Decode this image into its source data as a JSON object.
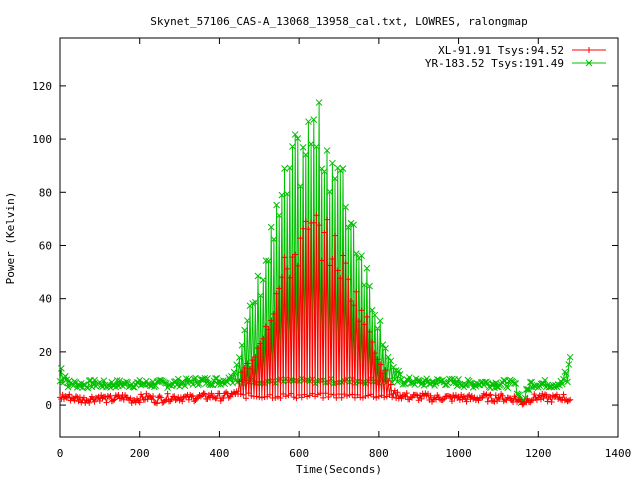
{
  "chart_data": {
    "type": "line",
    "title": "Skynet_57106_CAS-A_13068_13958_cal.txt, LOWRES, ralongmap",
    "xlabel": "Time(Seconds)",
    "ylabel": "Power (Kelvin)",
    "xlim": [
      0,
      1400
    ],
    "ylim": [
      -12,
      138
    ],
    "xticks": [
      0,
      200,
      400,
      600,
      800,
      1000,
      1200,
      1400
    ],
    "yticks": [
      0,
      20,
      40,
      60,
      80,
      100,
      120
    ],
    "xtick_labels": [
      "0",
      "200",
      "400",
      "600",
      "800",
      "1000",
      "1200",
      "1400"
    ],
    "ytick_labels": [
      "0",
      "20",
      "40",
      "60",
      "80",
      "100",
      "120"
    ],
    "grid": false,
    "legend_position": "top-right",
    "series": [
      {
        "name": "XL-91.91 Tsys:94.52",
        "color": "#ff0000",
        "marker": "plus",
        "baseline": 2.5,
        "scan_peak": 74,
        "x": [
          0,
          20,
          40,
          60,
          80,
          100,
          120,
          140,
          160,
          180,
          200,
          220,
          240,
          260,
          280,
          300,
          320,
          340,
          360,
          380,
          400,
          420,
          440,
          460,
          480,
          500,
          520,
          540,
          560,
          580,
          600,
          620,
          640,
          660,
          680,
          700,
          720,
          740,
          760,
          780,
          800,
          820,
          840,
          860,
          880,
          900,
          920,
          940,
          960,
          980,
          1000,
          1020,
          1040,
          1060,
          1080,
          1100,
          1120,
          1140,
          1160,
          1180,
          1200,
          1220,
          1240,
          1260,
          1280
        ],
        "y": [
          3,
          3,
          2.5,
          2,
          2.5,
          3,
          2,
          2.5,
          3,
          2,
          2.5,
          3,
          2,
          2.5,
          3,
          3,
          2.5,
          3,
          3,
          3.5,
          3,
          3.5,
          4,
          15,
          18,
          28,
          35,
          45,
          55,
          62,
          68,
          72,
          74,
          72,
          68,
          62,
          55,
          46,
          38,
          30,
          20,
          12,
          4,
          3.5,
          3,
          3,
          3,
          2.5,
          3,
          2.5,
          3,
          2.5,
          2.5,
          3,
          2.5,
          3,
          2.5,
          2.5,
          1,
          2.5,
          3,
          2.5,
          2.5,
          3,
          2
        ]
      },
      {
        "name": "YR-183.52 Tsys:191.49",
        "color": "#00c000",
        "marker": "cross",
        "baseline": 8,
        "scan_peak": 116,
        "x": [
          0,
          20,
          40,
          60,
          80,
          100,
          120,
          140,
          160,
          180,
          200,
          220,
          240,
          260,
          280,
          300,
          320,
          340,
          360,
          380,
          400,
          420,
          440,
          460,
          480,
          500,
          520,
          540,
          560,
          580,
          600,
          620,
          640,
          660,
          680,
          700,
          720,
          740,
          760,
          780,
          800,
          820,
          840,
          860,
          880,
          900,
          920,
          940,
          960,
          980,
          1000,
          1020,
          1040,
          1060,
          1080,
          1100,
          1120,
          1140,
          1160,
          1180,
          1200,
          1220,
          1240,
          1260,
          1280
        ],
        "y": [
          17,
          8,
          8,
          7.5,
          8,
          8,
          7.5,
          8,
          8,
          8,
          8,
          8,
          8,
          8,
          8,
          8.5,
          8.5,
          9,
          9,
          9,
          9,
          9.5,
          18,
          28,
          40,
          52,
          62,
          75,
          88,
          98,
          106,
          112,
          116,
          112,
          105,
          96,
          86,
          74,
          62,
          48,
          36,
          24,
          14,
          9,
          9,
          8.5,
          8.5,
          8.5,
          9,
          8.5,
          8.5,
          8,
          8,
          8.5,
          8,
          8,
          8,
          8,
          1,
          8,
          8,
          8,
          8,
          8,
          18
        ]
      }
    ]
  }
}
